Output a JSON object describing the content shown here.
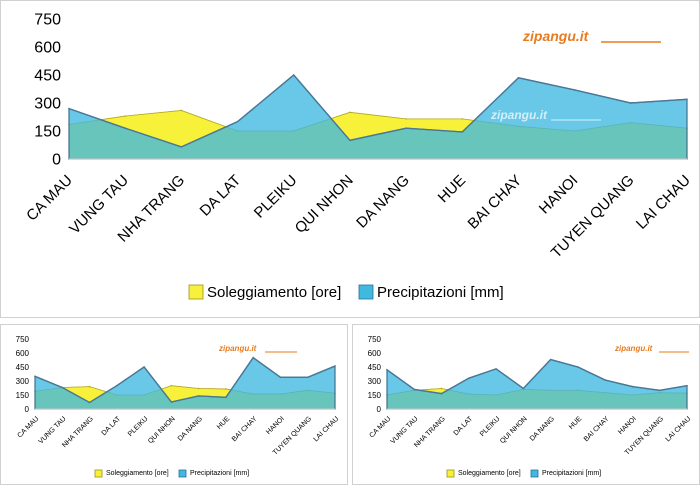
{
  "chart_data": [
    {
      "type": "area",
      "watermark": "zipangu.it",
      "categories": [
        "CA MAU",
        "VUNG TAU",
        "NHA TRANG",
        "DA LAT",
        "PLEIKU",
        "QUI NHON",
        "DA NANG",
        "HUE",
        "BAI CHAY",
        "HANOI",
        "TUYEN QUANG",
        "LAI CHAU"
      ],
      "yticks": [
        0,
        150,
        300,
        450,
        600,
        750
      ],
      "ylim": [
        0,
        750
      ],
      "grid": false,
      "legend": "bottom",
      "series": [
        {
          "name": "Soleggiamento [ore]",
          "color": "#f7f13a",
          "values": [
            185,
            230,
            260,
            150,
            150,
            250,
            215,
            215,
            175,
            150,
            195,
            165
          ]
        },
        {
          "name": "Precipitazioni [mm]",
          "color": "#3fb9e0",
          "values": [
            270,
            165,
            65,
            200,
            450,
            100,
            165,
            145,
            435,
            370,
            300,
            320
          ]
        }
      ]
    },
    {
      "type": "area",
      "watermark": "zipangu.it",
      "categories": [
        "CA MAU",
        "VUNG TAU",
        "NHA TRANG",
        "DA LAT",
        "PLEIKU",
        "QUI NHON",
        "DA NANG",
        "HUE",
        "BAI CHAY",
        "HANOI",
        "TUYEN QUANG",
        "LAI CHAU"
      ],
      "yticks": [
        0,
        150,
        300,
        450,
        600,
        750
      ],
      "ylim": [
        0,
        750
      ],
      "grid": false,
      "legend": "bottom",
      "series": [
        {
          "name": "Soleggiamento [ore]",
          "color": "#f7f13a",
          "values": [
            190,
            230,
            240,
            150,
            150,
            250,
            220,
            215,
            160,
            160,
            200,
            170
          ]
        },
        {
          "name": "Precipitazioni [mm]",
          "color": "#3fb9e0",
          "values": [
            350,
            230,
            70,
            250,
            450,
            75,
            140,
            125,
            550,
            340,
            340,
            460
          ]
        }
      ]
    },
    {
      "type": "area",
      "watermark": "zipangu.it",
      "categories": [
        "CA MAU",
        "VUNG TAU",
        "NHA TRANG",
        "DA LAT",
        "PLEIKU",
        "QUI NHON",
        "DA NANG",
        "HUE",
        "BAI CHAY",
        "HANOI",
        "TUYEN QUANG",
        "LAI CHAU"
      ],
      "yticks": [
        0,
        150,
        300,
        450,
        600,
        750
      ],
      "ylim": [
        0,
        750
      ],
      "grid": false,
      "legend": "bottom",
      "series": [
        {
          "name": "Soleggiamento [ore]",
          "color": "#f7f13a",
          "values": [
            150,
            200,
            220,
            160,
            150,
            210,
            200,
            200,
            175,
            150,
            175,
            170
          ]
        },
        {
          "name": "Precipitazioni [mm]",
          "color": "#3fb9e0",
          "values": [
            420,
            210,
            165,
            330,
            430,
            220,
            530,
            450,
            310,
            240,
            200,
            250
          ]
        }
      ]
    }
  ]
}
